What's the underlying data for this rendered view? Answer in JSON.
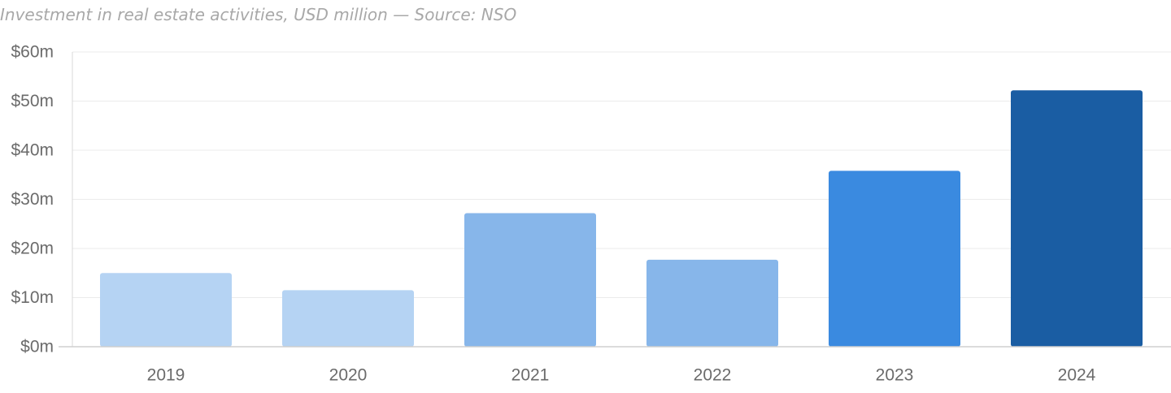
{
  "subtitle": "Investment in real estate activities, USD million — Source: NSO",
  "chart_data": {
    "type": "bar",
    "title": "",
    "xlabel": "",
    "ylabel": "",
    "categories": [
      "2019",
      "2020",
      "2021",
      "2022",
      "2023",
      "2024"
    ],
    "values": [
      15,
      11.5,
      27.2,
      17.7,
      35.8,
      52.2
    ],
    "colors": [
      "#b5d3f3",
      "#b5d3f3",
      "#87b6ea",
      "#87b6ea",
      "#3a8ae0",
      "#1a5da3"
    ],
    "ylim": [
      0,
      60
    ],
    "yticks": [
      0,
      10,
      20,
      30,
      40,
      50,
      60
    ],
    "ytick_labels": [
      "$0m",
      "$10m",
      "$20m",
      "$30m",
      "$40m",
      "$50m",
      "$60m"
    ],
    "grid": true,
    "legend": "none"
  }
}
